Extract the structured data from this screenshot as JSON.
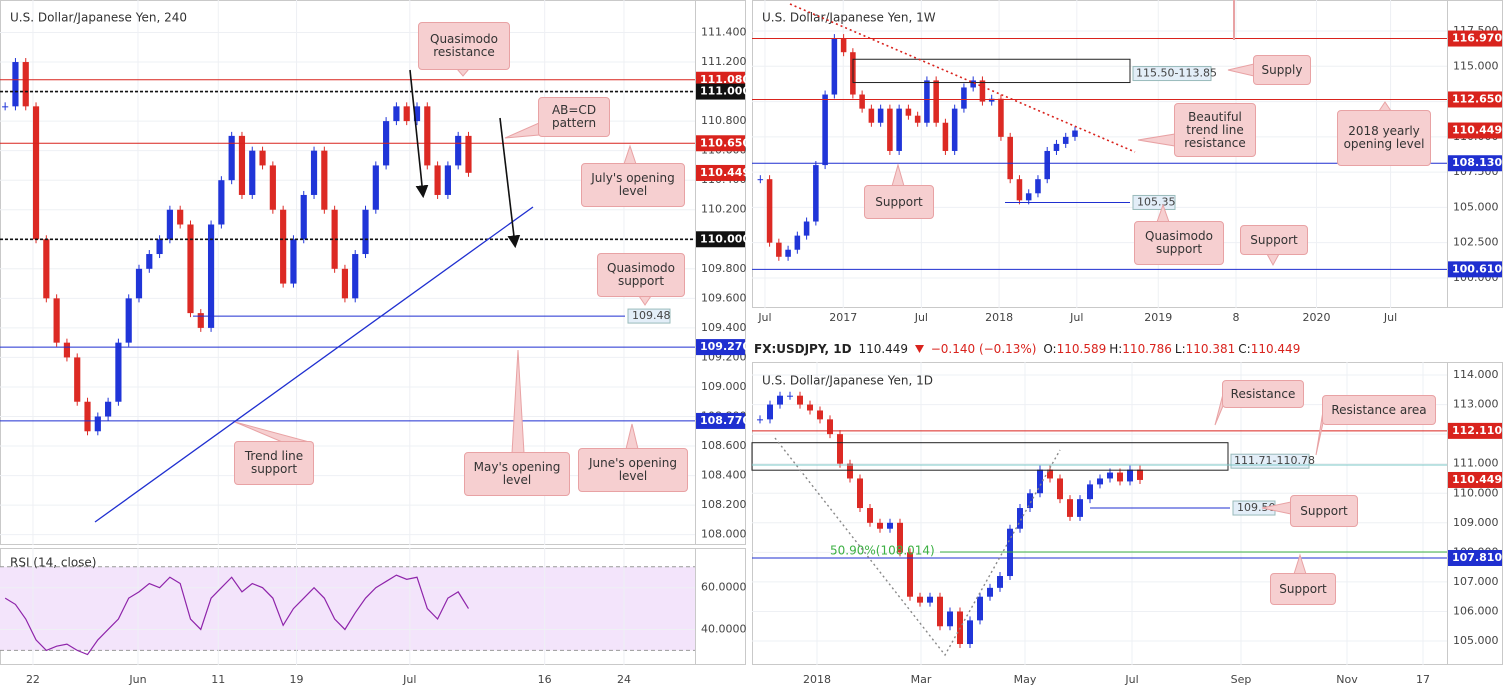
{
  "header": {
    "symbol": "FX:USDJPY, 1D",
    "last": "110.449",
    "change": "−0.140 (−0.13%)",
    "ohlc": [
      {
        "label": "O:",
        "value": "110.589"
      },
      {
        "label": "H:",
        "value": "110.786"
      },
      {
        "label": "L:",
        "value": "110.381"
      },
      {
        "label": "C:",
        "value": "110.449"
      }
    ]
  },
  "chart_data": [
    {
      "type": "candlestick",
      "title": "U.S. Dollar/Japanese Yen, 240",
      "values": [
        110.9,
        111.2,
        110.9,
        110.0,
        109.6,
        109.3,
        109.2,
        108.9,
        108.7,
        108.8,
        108.9,
        109.3,
        109.6,
        109.8,
        109.9,
        110.0,
        110.2,
        110.1,
        109.5,
        109.4,
        110.1,
        110.4,
        110.7,
        110.3,
        110.6,
        110.5,
        110.2,
        109.7,
        110.0,
        110.3,
        110.6,
        110.2,
        109.8,
        109.6,
        109.9,
        110.2,
        110.5,
        110.8,
        110.9,
        110.8,
        110.9,
        110.5,
        110.3,
        110.5,
        110.7,
        110.45
      ],
      "up_color": "#2035d8",
      "down_color": "#dc2a24",
      "xlim": [
        -0.5,
        67
      ],
      "ylim": [
        107.93,
        111.62
      ],
      "xticks": [
        {
          "value": 2.7,
          "label": "22"
        },
        {
          "value": 12.9,
          "label": "Jun"
        },
        {
          "value": 20.7,
          "label": "11"
        },
        {
          "value": 28.3,
          "label": "19"
        },
        {
          "value": 39.3,
          "label": "Jul"
        },
        {
          "value": 52.4,
          "label": "16"
        },
        {
          "value": 60.1,
          "label": "24"
        }
      ],
      "yticks": [
        {
          "value": 108,
          "label": "108.000"
        },
        {
          "value": 108.2,
          "label": "108.200"
        },
        {
          "value": 108.4,
          "label": "108.400"
        },
        {
          "value": 108.6,
          "label": "108.600"
        },
        {
          "value": 108.8,
          "label": "108.800"
        },
        {
          "value": 109,
          "label": "109.000"
        },
        {
          "value": 109.2,
          "label": "109.200"
        },
        {
          "value": 109.4,
          "label": "109.400"
        },
        {
          "value": 109.6,
          "label": "109.600"
        },
        {
          "value": 109.8,
          "label": "109.800"
        },
        {
          "value": 110,
          "label": "110.000"
        },
        {
          "value": 110.2,
          "label": "110.200"
        },
        {
          "value": 110.4,
          "label": "110.400"
        },
        {
          "value": 110.6,
          "label": "110.600"
        },
        {
          "value": 110.8,
          "label": "110.800"
        },
        {
          "value": 111,
          "label": "111.000"
        },
        {
          "value": 111.2,
          "label": "111.200"
        },
        {
          "value": 111.4,
          "label": "111.400"
        }
      ],
      "grid": true,
      "levels": [
        {
          "value": 111.08,
          "label": "111.080",
          "color": "#d9231d",
          "style": "solid"
        },
        {
          "value": 111.0,
          "label": "111.000",
          "color": "#111111",
          "style": "dashed"
        },
        {
          "value": 110.65,
          "label": "110.650",
          "color": "#d9231d",
          "style": "solid"
        },
        {
          "value": 110.449,
          "label": "110.449",
          "color": "#d9231d",
          "style": "none"
        },
        {
          "value": 110.0,
          "label": "110.000",
          "color": "#111111",
          "style": "dashed"
        },
        {
          "value": 109.27,
          "label": "109.270",
          "color": "#1f2fd0",
          "style": "solid"
        },
        {
          "value": 108.77,
          "label": "108.770",
          "color": "#1f2fd0",
          "style": "solid"
        },
        {
          "value": 109.48,
          "label": "109.48",
          "color": "#1f2fd0",
          "style": "short"
        }
      ],
      "annotations": [
        "Quasimodo resistance",
        "AB=CD pattern",
        "July's opening level",
        "Quasimodo support",
        "Trend line support",
        "May's opening level",
        "June's opening level"
      ]
    },
    {
      "type": "line",
      "title": "RSI (14, close)",
      "values": [
        55,
        52,
        45,
        35,
        30,
        32,
        33,
        30,
        28,
        35,
        40,
        45,
        55,
        58,
        62,
        60,
        65,
        62,
        45,
        40,
        55,
        60,
        65,
        58,
        62,
        60,
        55,
        42,
        50,
        55,
        60,
        55,
        45,
        40,
        48,
        55,
        60,
        63,
        66,
        64,
        65,
        50,
        45,
        55,
        58,
        50
      ],
      "color": "#8e24aa",
      "band": [
        30,
        70
      ],
      "xlim": [
        -0.5,
        67
      ],
      "ylim": [
        23,
        79
      ],
      "xticks": [
        {
          "value": 2.7,
          "label": "22"
        },
        {
          "value": 12.9,
          "label": "Jun"
        },
        {
          "value": 20.7,
          "label": "11"
        },
        {
          "value": 28.3,
          "label": "19"
        },
        {
          "value": 39.3,
          "label": "Jul"
        },
        {
          "value": 52.4,
          "label": "16"
        },
        {
          "value": 60.1,
          "label": "24"
        }
      ],
      "yticks": [
        {
          "value": 60,
          "label": "60.0000"
        },
        {
          "value": 40,
          "label": "40.0000"
        }
      ],
      "grid": true
    },
    {
      "type": "candlestick",
      "title": "U.S. Dollar/Japanese Yen, 1W",
      "values": [
        107,
        102.5,
        101.5,
        102,
        103,
        104,
        108,
        113,
        117,
        116,
        113,
        112,
        111,
        112,
        109,
        112,
        111.5,
        111,
        114,
        111,
        109,
        112,
        113.5,
        114,
        112.5,
        112.7,
        110,
        107,
        105.5,
        106,
        107,
        109,
        109.5,
        110,
        110.45
      ],
      "up_color": "#2035d8",
      "down_color": "#dc2a24",
      "xlim": [
        -0.9,
        74.2
      ],
      "ylim": [
        97.87,
        119.7
      ],
      "xticks": [
        {
          "value": 0.5,
          "label": "Jul"
        },
        {
          "value": 8.96,
          "label": "2017"
        },
        {
          "value": 17.4,
          "label": "Jul"
        },
        {
          "value": 25.8,
          "label": "2018"
        },
        {
          "value": 34.2,
          "label": "Jul"
        },
        {
          "value": 43.0,
          "label": "2019"
        },
        {
          "value": 51.4,
          "label": "8"
        },
        {
          "value": 60.1,
          "label": "2020"
        },
        {
          "value": 68.1,
          "label": "Jul"
        }
      ],
      "yticks": [
        {
          "value": 100,
          "label": "100.000"
        },
        {
          "value": 102.5,
          "label": "102.500"
        },
        {
          "value": 105,
          "label": "105.000"
        },
        {
          "value": 107.5,
          "label": "107.500"
        },
        {
          "value": 110,
          "label": "110.000"
        },
        {
          "value": 112.5,
          "label": "112.500"
        },
        {
          "value": 115,
          "label": "115.000"
        },
        {
          "value": 117.5,
          "label": "117.500"
        }
      ],
      "grid": true,
      "levels": [
        {
          "value": 116.97,
          "label": "116.970",
          "color": "#d9231d",
          "style": "solid"
        },
        {
          "value": 112.65,
          "label": "112.650",
          "color": "#d9231d",
          "style": "solid"
        },
        {
          "value": 110.449,
          "label": "110.449",
          "color": "#d9231d",
          "style": "none"
        },
        {
          "value": 108.13,
          "label": "108.130",
          "color": "#1f2fd0",
          "style": "solid"
        },
        {
          "value": 100.61,
          "label": "100.610",
          "color": "#1f2fd0",
          "style": "solid"
        },
        {
          "value": 105.35,
          "label": "105.35",
          "color": "#1f2fd0",
          "style": "short"
        }
      ],
      "zones": [
        {
          "top": 115.5,
          "bottom": 113.85,
          "label": "115.50-113.85"
        }
      ],
      "annotations": [
        "Supply",
        "Beautiful trend line resistance",
        "2018 yearly opening level",
        "Support",
        "Quasimodo support",
        "Support"
      ]
    },
    {
      "type": "candlestick",
      "title": "U.S. Dollar/Japanese Yen, 1D",
      "values": [
        112.5,
        113,
        113.3,
        113.3,
        113,
        112.8,
        112.5,
        112,
        111,
        110.5,
        109.5,
        109,
        108.8,
        109,
        108,
        106.5,
        106.3,
        106.5,
        105.5,
        106,
        104.9,
        105.7,
        106.5,
        106.8,
        107.2,
        108.8,
        109.5,
        110,
        110.8,
        110.5,
        109.8,
        109.2,
        109.8,
        110.3,
        110.5,
        110.7,
        110.4,
        110.8,
        110.45
      ],
      "up_color": "#2035d8",
      "down_color": "#dc2a24",
      "xlim": [
        -0.8,
        68.7
      ],
      "ylim": [
        104.19,
        114.44
      ],
      "xticks": [
        {
          "value": 5.7,
          "label": "2018"
        },
        {
          "value": 16.1,
          "label": "Mar"
        },
        {
          "value": 26.5,
          "label": "May"
        },
        {
          "value": 37.2,
          "label": "Jul"
        },
        {
          "value": 48.1,
          "label": "Sep"
        },
        {
          "value": 58.7,
          "label": "Nov"
        },
        {
          "value": 66.3,
          "label": "17"
        }
      ],
      "yticks": [
        {
          "value": 105,
          "label": "105.000"
        },
        {
          "value": 106,
          "label": "106.000"
        },
        {
          "value": 107,
          "label": "107.000"
        },
        {
          "value": 108,
          "label": "108.000"
        },
        {
          "value": 109,
          "label": "109.000"
        },
        {
          "value": 110,
          "label": "110.000"
        },
        {
          "value": 111,
          "label": "111.000"
        },
        {
          "value": 112,
          "label": "112.000"
        },
        {
          "value": 113,
          "label": "113.000"
        },
        {
          "value": 114,
          "label": "114.000"
        }
      ],
      "grid": true,
      "levels": [
        {
          "value": 112.11,
          "label": "112.110",
          "color": "#d9231d",
          "style": "solid"
        },
        {
          "value": 110.449,
          "label": "110.449",
          "color": "#d9231d",
          "style": "none"
        },
        {
          "value": 107.81,
          "label": "107.810",
          "color": "#1f2fd0",
          "style": "solid"
        },
        {
          "value": 109.5,
          "label": "109.50",
          "color": "#1f2fd0",
          "style": "short"
        },
        {
          "value": 108.014,
          "label": "50.90%(108.014)",
          "color": "#3cb043",
          "style": "fib"
        }
      ],
      "zones": [
        {
          "top": 111.71,
          "bottom": 110.78,
          "label": "111.71-110.78"
        }
      ],
      "annotations": [
        "Resistance",
        "Resistance area",
        "Support",
        "Support"
      ]
    }
  ]
}
